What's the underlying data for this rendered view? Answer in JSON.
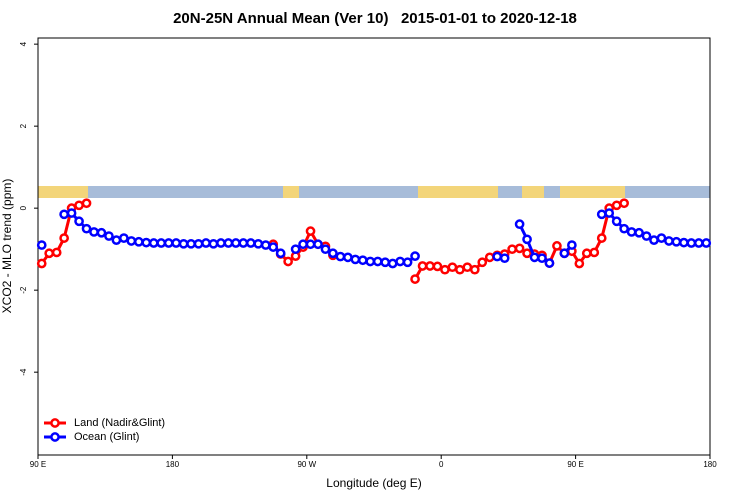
{
  "chart_data": {
    "type": "line",
    "title": "20N-25N Annual Mean (Ver 10)   2015-01-01 to 2020-12-18",
    "x_label": "Longitude (deg E)",
    "y_label": "XCO2 - MLO trend (ppm)",
    "xlim": [
      90,
      540
    ],
    "ylim": [
      -6.02,
      4.15
    ],
    "xticks": [
      {
        "value": 90,
        "label": "90 E"
      },
      180,
      {
        "value": 270,
        "label": "90 W"
      },
      {
        "value": 360,
        "label": "0"
      },
      {
        "value": 450,
        "label": "90 E"
      },
      {
        "value": 540,
        "label": "180"
      }
    ],
    "yticks": [
      -4,
      -2,
      0,
      2,
      4
    ],
    "legend": "bottom-left",
    "x": [
      92.5,
      97.5,
      102.5,
      107.5,
      112.5,
      117.5,
      122.5,
      127.5,
      132.5,
      137.5,
      142.5,
      147.5,
      152.5,
      157.5,
      162.5,
      167.5,
      172.5,
      177.5,
      182.5,
      187.5,
      192.5,
      197.5,
      202.5,
      207.5,
      212.5,
      217.5,
      222.5,
      227.5,
      232.5,
      237.5,
      242.5,
      247.5,
      252.5,
      257.5,
      262.5,
      267.5,
      272.5,
      277.5,
      282.5,
      287.5,
      292.5,
      297.5,
      302.5,
      307.5,
      312.5,
      317.5,
      322.5,
      327.5,
      332.5,
      337.5,
      342.5,
      347.5,
      352.5,
      357.5,
      362.5,
      367.5,
      372.5,
      377.5,
      382.5,
      387.5,
      392.5,
      397.5,
      402.5,
      407.5,
      412.5,
      417.5,
      422.5,
      427.5,
      432.5,
      437.5,
      442.5,
      447.5,
      452.5,
      457.5,
      462.5,
      467.5,
      472.5,
      477.5,
      482.5,
      487.5,
      492.5,
      497.5,
      502.5,
      507.5,
      512.5,
      517.5,
      522.5,
      527.5,
      532.5,
      537.5
    ],
    "series": [
      {
        "name": "Land (Nadir&Glint)",
        "color": "#ff0000",
        "values": [
          -1.35,
          -1.1,
          -1.08,
          -0.73,
          0.0,
          0.07,
          0.12,
          null,
          null,
          null,
          null,
          null,
          null,
          null,
          null,
          null,
          null,
          null,
          null,
          null,
          null,
          null,
          null,
          null,
          null,
          null,
          null,
          null,
          null,
          null,
          null,
          -0.88,
          -1.12,
          -1.3,
          -1.17,
          -0.95,
          -0.56,
          -0.88,
          -0.93,
          -1.15,
          null,
          null,
          null,
          null,
          null,
          null,
          null,
          null,
          null,
          null,
          -1.73,
          -1.41,
          -1.41,
          -1.42,
          -1.5,
          -1.44,
          -1.5,
          -1.44,
          -1.5,
          -1.32,
          -1.2,
          -1.15,
          -1.12,
          -1.0,
          -0.98,
          -1.1,
          -1.12,
          -1.15,
          -1.34,
          -0.92,
          -1.1,
          -1.05,
          -1.35,
          -1.1,
          -1.08,
          -0.73,
          0.0,
          0.07,
          0.12,
          null,
          null,
          null,
          null,
          null,
          null,
          null,
          null,
          null,
          null,
          null
        ]
      },
      {
        "name": "Ocean (Glint)",
        "color": "#0000ff",
        "values": [
          -0.9,
          null,
          null,
          -0.15,
          -0.12,
          -0.32,
          -0.5,
          -0.58,
          -0.6,
          -0.68,
          -0.78,
          -0.73,
          -0.8,
          -0.82,
          -0.84,
          -0.85,
          -0.85,
          -0.85,
          -0.85,
          -0.87,
          -0.87,
          -0.87,
          -0.85,
          -0.87,
          -0.85,
          -0.85,
          -0.85,
          -0.85,
          -0.85,
          -0.87,
          -0.9,
          -0.95,
          -1.1,
          null,
          -1.0,
          -0.88,
          -0.88,
          -0.88,
          -1.0,
          -1.1,
          -1.18,
          -1.2,
          -1.25,
          -1.27,
          -1.3,
          -1.3,
          -1.32,
          -1.35,
          -1.3,
          -1.32,
          -1.17,
          null,
          null,
          null,
          null,
          null,
          null,
          null,
          null,
          null,
          null,
          -1.18,
          -1.22,
          null,
          -0.39,
          -0.76,
          -1.2,
          -1.22,
          -1.34,
          null,
          -1.1,
          -0.9,
          null,
          null,
          null,
          -0.15,
          -0.12,
          -0.32,
          -0.5,
          -0.58,
          -0.6,
          -0.68,
          -0.78,
          -0.73,
          -0.8,
          -0.82,
          -0.84,
          -0.85,
          -0.85,
          -0.85
        ]
      }
    ]
  }
}
